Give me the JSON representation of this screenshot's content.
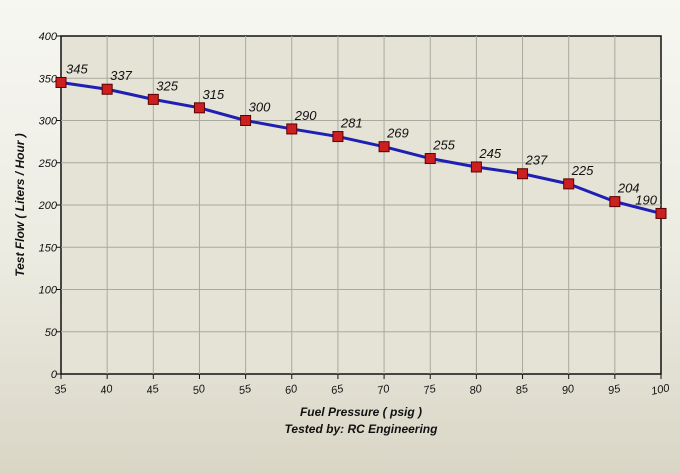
{
  "chart_data": {
    "type": "line",
    "xlabel": "Fuel Pressure ( psig )",
    "subtitle": "Tested by: RC Engineering",
    "ylabel": "Test Flow ( Liters / Hour )",
    "x": [
      35,
      40,
      45,
      50,
      55,
      60,
      65,
      70,
      75,
      80,
      85,
      90,
      95,
      100
    ],
    "series": [
      {
        "values": [
          345,
          337,
          325,
          315,
          300,
          290,
          281,
          269,
          255,
          245,
          237,
          225,
          204,
          190
        ]
      }
    ],
    "ylim": [
      0,
      400
    ],
    "xlim": [
      35,
      100
    ],
    "yticks": [
      0,
      50,
      100,
      150,
      200,
      250,
      300,
      350,
      400
    ],
    "xticks": [
      35,
      40,
      45,
      50,
      55,
      60,
      65,
      70,
      75,
      80,
      85,
      90,
      95,
      100
    ],
    "grid": true,
    "colors": {
      "line": "#1f1fb4",
      "marker": "#cc2020",
      "marker_edge": "#5a0000",
      "plot_bg": "#e4e3d6",
      "grid": "#a9a9a0"
    }
  }
}
